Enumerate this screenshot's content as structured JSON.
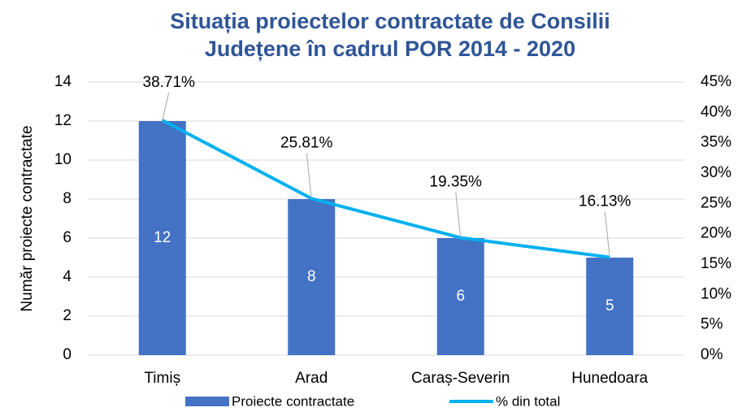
{
  "chart_data": {
    "type": "bar",
    "title": [
      "Situația proiectelor contractate de Consilii",
      "Județene în cadrul POR 2014 - 2020"
    ],
    "ylabel": "Număr proiecte contractate",
    "categories": [
      "Timiș",
      "Arad",
      "Caraș-Severin",
      "Hunedoara"
    ],
    "series": [
      {
        "name": "Proiecte contractate",
        "type": "bar",
        "color": "#4472c4",
        "values": [
          12,
          8,
          6,
          5
        ]
      },
      {
        "name": "% din total",
        "type": "line",
        "axis": "y2",
        "color": "#00b0f0",
        "values": [
          38.71,
          25.81,
          19.35,
          16.13
        ],
        "value_labels": [
          "38.71%",
          "25.81%",
          "19.35%",
          "16.13%"
        ]
      }
    ],
    "ylim": [
      0,
      14
    ],
    "yticks": [
      0,
      2,
      4,
      6,
      8,
      10,
      12,
      14
    ],
    "y2lim": [
      0,
      45
    ],
    "y2ticks": [
      {
        "value": 0,
        "label": "0%"
      },
      {
        "value": 5,
        "label": "5%"
      },
      {
        "value": 10,
        "label": "10%"
      },
      {
        "value": 15,
        "label": "15%"
      },
      {
        "value": 20,
        "label": "20%"
      },
      {
        "value": 25,
        "label": "25%"
      },
      {
        "value": 30,
        "label": "30%"
      },
      {
        "value": 35,
        "label": "35%"
      },
      {
        "value": 40,
        "label": "40%"
      },
      {
        "value": 45,
        "label": "45%"
      }
    ],
    "grid": true,
    "legend": "bottom"
  }
}
